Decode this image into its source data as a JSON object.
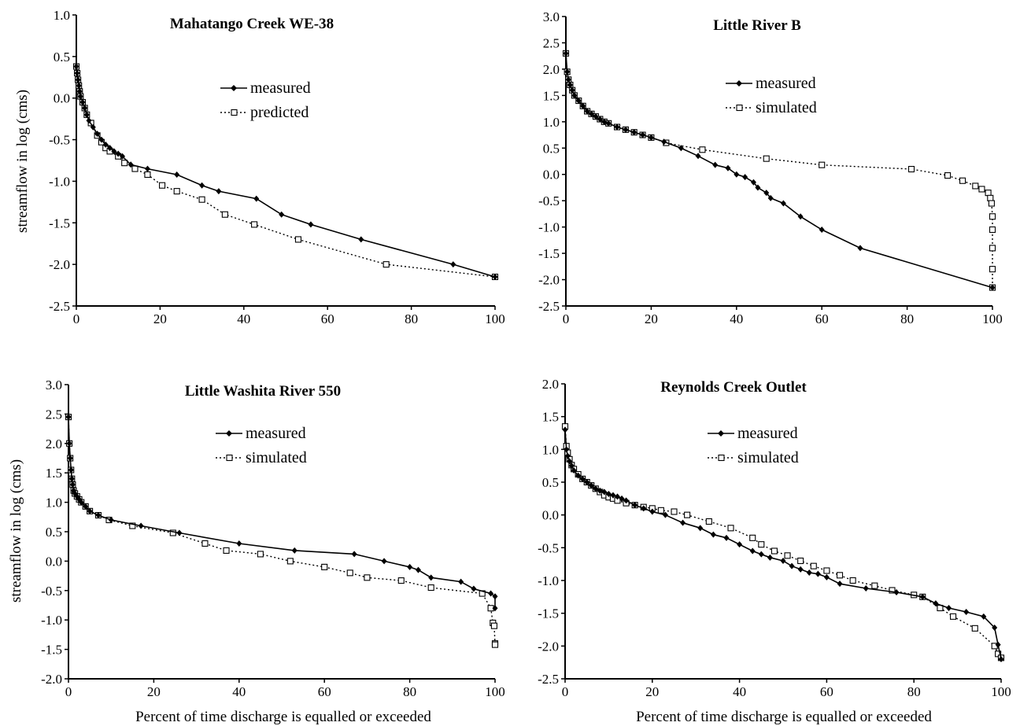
{
  "figure": {
    "xlabel": "Percent of time discharge is equalled or exceeded",
    "ylabel": "streamflow in log (cms)"
  },
  "chart_data": [
    {
      "type": "line",
      "title": "Mahatango Creek WE-38",
      "xlabel": "",
      "ylabel": "streamflow in log (cms)",
      "xlim": [
        0,
        100
      ],
      "ylim": [
        -2.5,
        1.0
      ],
      "xticks": [
        "0",
        "20",
        "40",
        "60",
        "80",
        "100"
      ],
      "yticks": [
        "1.0",
        "0.5",
        "0.0",
        "-0.5",
        "-1.0",
        "-1.5",
        "-2.0",
        "-2.5"
      ],
      "legend": "upper-middle",
      "series": [
        {
          "name": "measured",
          "style": "solid",
          "marker": "diamond",
          "x": [
            0,
            0.2,
            0.4,
            0.6,
            0.8,
            1,
            1.5,
            2,
            2.5,
            3,
            4,
            5,
            6,
            7,
            8,
            9,
            10,
            11,
            13,
            17,
            24,
            30,
            34,
            43,
            49,
            56,
            68,
            90,
            100
          ],
          "y": [
            0.38,
            0.3,
            0.22,
            0.15,
            0.08,
            0.02,
            -0.05,
            -0.12,
            -0.2,
            -0.27,
            -0.35,
            -0.43,
            -0.5,
            -0.56,
            -0.6,
            -0.64,
            -0.67,
            -0.7,
            -0.8,
            -0.85,
            -0.92,
            -1.05,
            -1.12,
            -1.21,
            -1.4,
            -1.52,
            -1.7,
            -2.0,
            -2.15
          ]
        },
        {
          "name": "predicted",
          "style": "dotted",
          "marker": "square",
          "x": [
            0,
            0.2,
            0.4,
            0.6,
            0.8,
            1,
            1.5,
            2,
            2.5,
            3.5,
            5,
            6,
            7,
            8,
            10,
            11.5,
            14,
            17,
            20.5,
            24,
            30,
            35.5,
            42.5,
            53,
            74,
            100
          ],
          "y": [
            0.38,
            0.3,
            0.22,
            0.15,
            0.08,
            0.02,
            -0.05,
            -0.12,
            -0.2,
            -0.3,
            -0.45,
            -0.53,
            -0.6,
            -0.64,
            -0.7,
            -0.78,
            -0.85,
            -0.92,
            -1.05,
            -1.12,
            -1.22,
            -1.4,
            -1.52,
            -1.7,
            -2.0,
            -2.15
          ]
        }
      ]
    },
    {
      "type": "line",
      "title": "Little River B",
      "xlabel": "",
      "ylabel": "",
      "xlim": [
        0,
        100
      ],
      "ylim": [
        -2.5,
        3.0
      ],
      "xticks": [
        "0",
        "20",
        "40",
        "60",
        "80",
        "100"
      ],
      "yticks": [
        "3.0",
        "2.5",
        "2.0",
        "1.5",
        "1.0",
        "0.5",
        "0.0",
        "-0.5",
        "-1.0",
        "-1.5",
        "-2.0",
        "-2.5"
      ],
      "legend": "upper-middle",
      "series": [
        {
          "name": "measured",
          "style": "solid",
          "marker": "diamond",
          "x": [
            0,
            0.3,
            0.6,
            1,
            1.5,
            2,
            3,
            4,
            5,
            6,
            7,
            8,
            9,
            10,
            12,
            14,
            16,
            18,
            20,
            23,
            27,
            31,
            35,
            38,
            40,
            42,
            44,
            45,
            47,
            48,
            51,
            55,
            60,
            69,
            100
          ],
          "y": [
            2.3,
            1.95,
            1.8,
            1.7,
            1.6,
            1.5,
            1.4,
            1.3,
            1.2,
            1.15,
            1.1,
            1.05,
            1.0,
            0.97,
            0.9,
            0.85,
            0.8,
            0.75,
            0.7,
            0.62,
            0.5,
            0.35,
            0.18,
            0.12,
            0.0,
            -0.05,
            -0.15,
            -0.25,
            -0.35,
            -0.45,
            -0.55,
            -0.8,
            -1.05,
            -1.4,
            -2.15
          ]
        },
        {
          "name": "simulated",
          "style": "dotted",
          "marker": "square",
          "x": [
            0,
            0.3,
            0.6,
            1,
            1.5,
            2,
            3,
            4,
            5,
            6,
            7,
            8,
            9,
            10,
            12,
            14,
            16,
            18,
            20,
            23.5,
            32,
            47,
            60,
            81,
            89.5,
            93,
            96,
            97.5,
            99,
            99.5,
            99.8,
            100,
            100,
            100,
            100,
            100
          ],
          "y": [
            2.3,
            1.95,
            1.8,
            1.7,
            1.6,
            1.5,
            1.4,
            1.3,
            1.2,
            1.15,
            1.1,
            1.05,
            1.0,
            0.97,
            0.9,
            0.85,
            0.8,
            0.75,
            0.7,
            0.6,
            0.47,
            0.3,
            0.18,
            0.1,
            -0.02,
            -0.12,
            -0.22,
            -0.28,
            -0.35,
            -0.45,
            -0.55,
            -0.8,
            -1.05,
            -1.4,
            -1.8,
            -2.15
          ]
        }
      ]
    },
    {
      "type": "line",
      "title": "Little Washita River 550",
      "xlabel": "Percent of time discharge is equalled or exceeded",
      "ylabel": "streamflow in log (cms)",
      "xlim": [
        0,
        100
      ],
      "ylim": [
        -2.0,
        3.0
      ],
      "xticks": [
        "0",
        "20",
        "40",
        "60",
        "80",
        "100"
      ],
      "yticks": [
        "3.0",
        "2.5",
        "2.0",
        "1.5",
        "1.0",
        "0.5",
        "0.0",
        "-0.5",
        "-1.0",
        "-1.5",
        "-2.0"
      ],
      "legend": "upper-middle",
      "series": [
        {
          "name": "measured",
          "style": "solid",
          "marker": "diamond",
          "x": [
            0,
            0.2,
            0.4,
            0.6,
            0.8,
            1,
            1.2,
            1.5,
            2,
            2.5,
            3,
            4,
            5,
            7,
            10,
            17,
            26,
            40,
            53,
            67,
            74,
            80,
            82,
            85,
            92,
            95,
            99,
            100,
            100
          ],
          "y": [
            2.45,
            2.0,
            1.75,
            1.55,
            1.4,
            1.3,
            1.2,
            1.15,
            1.1,
            1.05,
            1.0,
            0.93,
            0.85,
            0.78,
            0.7,
            0.6,
            0.48,
            0.3,
            0.18,
            0.12,
            0.0,
            -0.1,
            -0.15,
            -0.28,
            -0.35,
            -0.47,
            -0.55,
            -0.6,
            -0.8
          ]
        },
        {
          "name": "simulated",
          "style": "dotted",
          "marker": "square",
          "x": [
            0,
            0.2,
            0.4,
            0.6,
            0.8,
            1,
            1.2,
            1.5,
            2,
            2.5,
            3,
            4,
            5,
            7,
            9.5,
            15,
            24.5,
            32,
            37,
            45,
            52,
            60,
            66,
            70,
            78,
            85,
            97,
            99,
            99.5,
            99.8,
            100,
            100
          ],
          "y": [
            2.45,
            2.0,
            1.75,
            1.55,
            1.4,
            1.3,
            1.2,
            1.15,
            1.1,
            1.05,
            1.0,
            0.93,
            0.85,
            0.78,
            0.7,
            0.6,
            0.48,
            0.3,
            0.18,
            0.12,
            0.0,
            -0.1,
            -0.2,
            -0.28,
            -0.33,
            -0.45,
            -0.55,
            -0.8,
            -1.05,
            -1.1,
            -1.4,
            -1.42
          ]
        }
      ]
    },
    {
      "type": "line",
      "title": "Reynolds Creek Outlet",
      "xlabel": "Percent of time discharge is equalled or exceeded",
      "ylabel": "",
      "xlim": [
        0,
        100
      ],
      "ylim": [
        -2.5,
        2.0
      ],
      "xticks": [
        "0",
        "20",
        "40",
        "60",
        "80",
        "100"
      ],
      "yticks": [
        "2.0",
        "1.5",
        "1.0",
        "0.5",
        "0.0",
        "-0.5",
        "-1.0",
        "-1.5",
        "-2.0",
        "-2.5"
      ],
      "legend": "upper-middle",
      "series": [
        {
          "name": "measured",
          "style": "solid",
          "marker": "diamond",
          "x": [
            0,
            0.3,
            0.6,
            1,
            1.5,
            2,
            3,
            4,
            5,
            6,
            7,
            8,
            9,
            10,
            11,
            12,
            13,
            14,
            16,
            18,
            20,
            23,
            27,
            31,
            34,
            37,
            40,
            43,
            45,
            47,
            50,
            52,
            54,
            56,
            58,
            60,
            63,
            69,
            76,
            82,
            85,
            88,
            92,
            96,
            98.5,
            99.3,
            100
          ],
          "y": [
            1.3,
            1.0,
            0.9,
            0.82,
            0.75,
            0.68,
            0.6,
            0.55,
            0.5,
            0.45,
            0.4,
            0.37,
            0.35,
            0.32,
            0.3,
            0.28,
            0.25,
            0.22,
            0.15,
            0.1,
            0.05,
            0.0,
            -0.12,
            -0.2,
            -0.3,
            -0.35,
            -0.45,
            -0.55,
            -0.6,
            -0.65,
            -0.7,
            -0.78,
            -0.83,
            -0.88,
            -0.9,
            -0.95,
            -1.05,
            -1.12,
            -1.18,
            -1.25,
            -1.35,
            -1.42,
            -1.48,
            -1.55,
            -1.72,
            -1.98,
            -2.2
          ]
        },
        {
          "name": "simulated",
          "style": "dotted",
          "marker": "square",
          "x": [
            0,
            0.3,
            0.6,
            1,
            1.5,
            2,
            3,
            4,
            5,
            6,
            7,
            8,
            9,
            10,
            11,
            12,
            14,
            16,
            18,
            20,
            22,
            25,
            28,
            33,
            38,
            43,
            45,
            48,
            51,
            54,
            57,
            60,
            63,
            66,
            71,
            75,
            80,
            82,
            86,
            89,
            94,
            98.5,
            99.3,
            100
          ],
          "y": [
            1.35,
            1.05,
            0.95,
            0.85,
            0.76,
            0.7,
            0.62,
            0.55,
            0.5,
            0.45,
            0.4,
            0.35,
            0.3,
            0.27,
            0.25,
            0.22,
            0.18,
            0.15,
            0.12,
            0.1,
            0.07,
            0.05,
            0.0,
            -0.1,
            -0.2,
            -0.35,
            -0.45,
            -0.55,
            -0.62,
            -0.7,
            -0.78,
            -0.85,
            -0.92,
            -1.0,
            -1.08,
            -1.15,
            -1.22,
            -1.25,
            -1.42,
            -1.55,
            -1.73,
            -2.0,
            -2.12,
            -2.18
          ]
        }
      ]
    }
  ]
}
